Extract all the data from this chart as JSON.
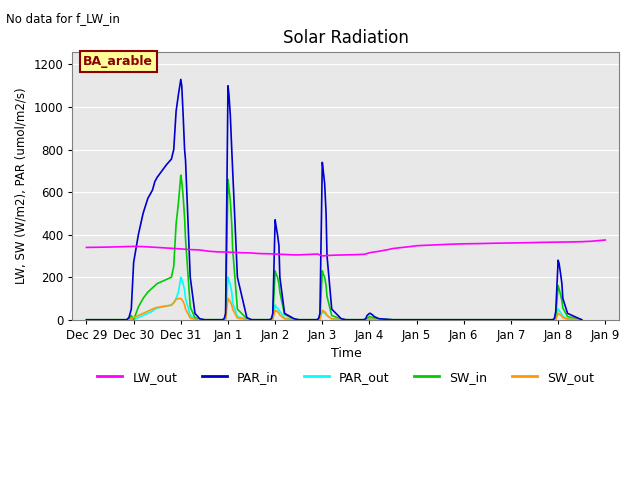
{
  "title": "Solar Radiation",
  "xlabel": "Time",
  "ylabel": "LW, SW (W/m2), PAR (umol/m2/s)",
  "top_left_text": "No data for f_LW_in",
  "annotation_text": "BA_arable",
  "ylim": [
    0,
    1260
  ],
  "yticks": [
    0,
    200,
    400,
    600,
    800,
    1000,
    1200
  ],
  "xtick_labels": [
    "Dec 29",
    "Dec 30",
    "Dec 31",
    "Jan 1",
    "Jan 2",
    "Jan 3",
    "Jan 4",
    "Jan 5",
    "Jan 6",
    "Jan 7",
    "Jan 8",
    "Jan 9"
  ],
  "xtick_positions": [
    0,
    1,
    2,
    3,
    4,
    5,
    6,
    7,
    8,
    9,
    10,
    11
  ],
  "xlim": [
    -0.3,
    11.3
  ],
  "background_color": "#e8e8e8",
  "legend_entries": [
    "LW_out",
    "PAR_in",
    "PAR_out",
    "SW_in",
    "SW_out"
  ],
  "legend_colors": [
    "#ff00ff",
    "#0000cc",
    "#00ffff",
    "#00cc00",
    "#ff9900"
  ],
  "line_colors": {
    "LW_out": "#ff00ff",
    "PAR_in": "#0000cc",
    "PAR_out": "#00ffff",
    "SW_in": "#00cc00",
    "SW_out": "#ff9900"
  },
  "LW_out_x": [
    0,
    0.3,
    0.5,
    0.7,
    1.0,
    1.2,
    1.5,
    1.8,
    2.0,
    2.2,
    2.4,
    2.5,
    2.6,
    2.8,
    3.0,
    3.2,
    3.3,
    3.5,
    3.6,
    3.7,
    3.9,
    4.0,
    4.1,
    4.2,
    4.3,
    4.4,
    4.5,
    4.6,
    4.7,
    4.8,
    4.9,
    5.0,
    5.1,
    5.2,
    5.3,
    5.5,
    5.7,
    5.9,
    6.0,
    6.2,
    6.4,
    6.5,
    6.7,
    6.9,
    7.0,
    7.2,
    7.5,
    7.7,
    8.0,
    8.3,
    8.5,
    8.7,
    9.0,
    9.3,
    9.5,
    9.7,
    10.0,
    10.3,
    10.5,
    10.7,
    11.0
  ],
  "LW_out_y": [
    340,
    341,
    342,
    343,
    345,
    344,
    340,
    336,
    333,
    330,
    328,
    325,
    322,
    319,
    318,
    316,
    315,
    314,
    312,
    311,
    310,
    309,
    308,
    307,
    306,
    305,
    305,
    306,
    307,
    308,
    309,
    300,
    302,
    303,
    304,
    305,
    306,
    308,
    315,
    322,
    330,
    335,
    340,
    345,
    348,
    350,
    353,
    355,
    357,
    358,
    359,
    360,
    361,
    362,
    363,
    364,
    365,
    366,
    367,
    369,
    375
  ],
  "PAR_in_x": [
    0,
    0.85,
    0.9,
    0.95,
    1.0,
    1.1,
    1.2,
    1.3,
    1.4,
    1.45,
    1.5,
    1.6,
    1.7,
    1.8,
    1.85,
    1.9,
    1.95,
    2.0,
    2.02,
    2.05,
    2.08,
    2.1,
    2.2,
    2.3,
    2.4,
    2.5,
    2.82,
    2.88,
    2.92,
    2.95,
    3.0,
    3.02,
    3.05,
    3.08,
    3.1,
    3.2,
    3.4,
    3.5,
    3.82,
    3.88,
    3.92,
    3.95,
    4.0,
    4.02,
    4.05,
    4.08,
    4.1,
    4.2,
    4.4,
    4.5,
    4.82,
    4.88,
    4.92,
    4.95,
    5.0,
    5.02,
    5.05,
    5.08,
    5.1,
    5.2,
    5.4,
    5.5,
    5.82,
    5.88,
    5.92,
    5.95,
    6.0,
    6.02,
    6.05,
    6.08,
    6.1,
    6.2,
    6.5,
    7.0,
    7.5,
    8.0,
    8.5,
    9.0,
    9.5,
    9.82,
    9.88,
    9.92,
    9.95,
    10.0,
    10.02,
    10.05,
    10.08,
    10.1,
    10.2,
    10.5
  ],
  "PAR_in_y": [
    0,
    0,
    10,
    50,
    270,
    400,
    500,
    570,
    610,
    650,
    670,
    700,
    730,
    755,
    800,
    980,
    1060,
    1130,
    1100,
    960,
    800,
    750,
    200,
    30,
    5,
    0,
    0,
    0,
    5,
    30,
    1100,
    1060,
    960,
    800,
    700,
    200,
    10,
    0,
    0,
    0,
    5,
    30,
    470,
    440,
    400,
    350,
    200,
    30,
    5,
    0,
    0,
    0,
    5,
    30,
    740,
    700,
    640,
    500,
    300,
    50,
    5,
    0,
    0,
    0,
    5,
    20,
    30,
    30,
    25,
    20,
    15,
    5,
    0,
    0,
    0,
    0,
    0,
    0,
    0,
    0,
    0,
    5,
    40,
    280,
    265,
    220,
    170,
    100,
    30,
    0
  ],
  "PAR_out_x": [
    0,
    0.85,
    0.9,
    0.95,
    1.0,
    1.1,
    1.2,
    1.3,
    1.4,
    1.45,
    1.5,
    1.6,
    1.7,
    1.8,
    1.85,
    1.9,
    1.95,
    2.0,
    2.02,
    2.05,
    2.08,
    2.1,
    2.2,
    2.3,
    2.4,
    2.5,
    2.82,
    2.88,
    2.92,
    2.95,
    3.0,
    3.02,
    3.05,
    3.08,
    3.1,
    3.2,
    3.4,
    3.5,
    3.82,
    3.88,
    3.92,
    3.95,
    4.0,
    4.02,
    4.05,
    4.08,
    4.1,
    4.2,
    4.4,
    4.5,
    4.82,
    4.88,
    4.92,
    4.95,
    5.0,
    5.02,
    5.05,
    5.08,
    5.1,
    5.2,
    5.4,
    5.5,
    5.82,
    5.88,
    5.92,
    5.95,
    6.0,
    6.02,
    6.05,
    6.08,
    6.1,
    6.2,
    6.5,
    7.0,
    7.5,
    8.0,
    8.5,
    9.0,
    9.5,
    9.82,
    9.88,
    9.92,
    9.95,
    10.0,
    10.02,
    10.05,
    10.08,
    10.1,
    10.2,
    10.5
  ],
  "PAR_out_y": [
    0,
    0,
    2,
    5,
    0,
    10,
    20,
    30,
    40,
    50,
    55,
    60,
    65,
    70,
    80,
    100,
    130,
    200,
    190,
    170,
    140,
    100,
    20,
    5,
    1,
    0,
    0,
    0,
    1,
    5,
    200,
    185,
    165,
    130,
    80,
    15,
    2,
    0,
    0,
    0,
    1,
    5,
    70,
    60,
    55,
    45,
    40,
    8,
    1,
    0,
    0,
    0,
    1,
    5,
    40,
    35,
    30,
    25,
    20,
    5,
    1,
    0,
    0,
    0,
    1,
    3,
    5,
    5,
    4,
    3,
    3,
    1,
    0,
    0,
    0,
    0,
    0,
    0,
    0,
    0,
    0,
    1,
    5,
    50,
    45,
    35,
    25,
    15,
    5,
    0
  ],
  "SW_in_x": [
    0,
    0.85,
    0.9,
    0.95,
    1.0,
    1.1,
    1.2,
    1.3,
    1.4,
    1.45,
    1.5,
    1.6,
    1.7,
    1.8,
    1.85,
    1.9,
    1.95,
    2.0,
    2.02,
    2.05,
    2.08,
    2.1,
    2.2,
    2.3,
    2.4,
    2.5,
    2.82,
    2.88,
    2.92,
    2.95,
    3.0,
    3.02,
    3.05,
    3.08,
    3.1,
    3.2,
    3.4,
    3.5,
    3.82,
    3.88,
    3.92,
    3.95,
    4.0,
    4.02,
    4.05,
    4.08,
    4.1,
    4.2,
    4.4,
    4.5,
    4.82,
    4.88,
    4.92,
    4.95,
    5.0,
    5.02,
    5.05,
    5.08,
    5.1,
    5.2,
    5.4,
    5.5,
    5.82,
    5.88,
    5.92,
    5.95,
    6.0,
    6.02,
    6.05,
    6.08,
    6.1,
    6.2,
    6.5,
    7.0,
    7.5,
    8.0,
    8.5,
    9.0,
    9.5,
    9.82,
    9.88,
    9.92,
    9.95,
    10.0,
    10.02,
    10.05,
    10.08,
    10.1,
    10.2,
    10.5
  ],
  "SW_in_y": [
    0,
    0,
    5,
    20,
    0,
    60,
    100,
    130,
    150,
    160,
    170,
    180,
    190,
    200,
    250,
    450,
    550,
    680,
    650,
    580,
    480,
    380,
    60,
    10,
    2,
    0,
    0,
    0,
    2,
    10,
    660,
    620,
    560,
    450,
    330,
    50,
    5,
    0,
    0,
    0,
    2,
    10,
    230,
    215,
    200,
    170,
    130,
    25,
    3,
    0,
    0,
    0,
    2,
    10,
    230,
    215,
    200,
    160,
    110,
    20,
    3,
    0,
    0,
    0,
    2,
    5,
    15,
    14,
    12,
    10,
    8,
    2,
    0,
    0,
    0,
    0,
    0,
    0,
    0,
    0,
    0,
    2,
    15,
    160,
    145,
    120,
    90,
    55,
    15,
    0
  ],
  "SW_out_x": [
    0,
    0.85,
    0.9,
    0.95,
    1.0,
    1.1,
    1.2,
    1.3,
    1.4,
    1.45,
    1.5,
    1.6,
    1.7,
    1.8,
    1.85,
    1.9,
    1.95,
    2.0,
    2.02,
    2.05,
    2.08,
    2.1,
    2.2,
    2.3,
    2.4,
    2.5,
    2.82,
    2.88,
    2.92,
    2.95,
    3.0,
    3.02,
    3.05,
    3.08,
    3.1,
    3.2,
    3.4,
    3.5,
    3.82,
    3.88,
    3.92,
    3.95,
    4.0,
    4.02,
    4.05,
    4.08,
    4.1,
    4.2,
    4.4,
    4.5,
    4.82,
    4.88,
    4.92,
    4.95,
    5.0,
    5.02,
    5.05,
    5.08,
    5.1,
    5.2,
    5.4,
    5.5,
    5.82,
    5.88,
    5.92,
    5.95,
    6.0,
    6.02,
    6.05,
    6.08,
    6.1,
    6.2,
    6.5,
    7.0,
    7.5,
    8.0,
    8.5,
    9.0,
    9.5,
    9.82,
    9.88,
    9.92,
    9.95,
    10.0,
    10.02,
    10.05,
    10.08,
    10.1,
    10.2,
    10.5
  ],
  "SW_out_y": [
    0,
    0,
    1,
    5,
    10,
    20,
    30,
    40,
    50,
    55,
    58,
    62,
    65,
    68,
    80,
    95,
    100,
    100,
    95,
    85,
    70,
    50,
    8,
    2,
    0,
    0,
    0,
    0,
    0,
    2,
    100,
    93,
    85,
    68,
    50,
    8,
    1,
    0,
    0,
    0,
    0,
    2,
    45,
    42,
    38,
    32,
    22,
    4,
    1,
    0,
    0,
    0,
    0,
    2,
    45,
    42,
    38,
    30,
    20,
    4,
    1,
    0,
    0,
    0,
    0,
    1,
    3,
    3,
    2,
    2,
    1,
    0,
    0,
    0,
    0,
    0,
    0,
    0,
    0,
    0,
    0,
    0,
    2,
    30,
    27,
    22,
    17,
    10,
    3,
    0
  ]
}
